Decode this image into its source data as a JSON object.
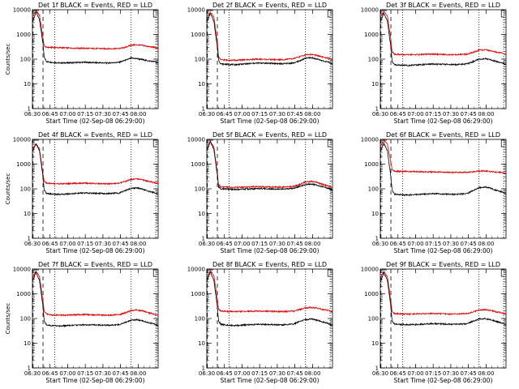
{
  "common": {
    "ylabel": "Counts/sec",
    "xlabel": "Start Time (02-Sep-08 06:29:00)",
    "x_tick_labels": [
      "06:30",
      "06:45",
      "07:00",
      "07:15",
      "07:30",
      "07:45",
      "08:00"
    ],
    "y_tick_labels": [
      "1",
      "10",
      "100",
      "1000",
      "10000"
    ],
    "ylim": [
      1,
      10000
    ],
    "y_scale": "log",
    "xlim_minutes_from_start": [
      1,
      108
    ],
    "series_colors": {
      "events": "#000000",
      "lld": "#dd0000"
    },
    "marker_lines_dashed_minutes": [
      1.5,
      10
    ],
    "marker_lines_dotted_minutes": [
      20,
      85,
      106
    ]
  },
  "chart_data": [
    {
      "type": "line",
      "title": "Det 1f BLACK = Events, RED = LLD",
      "x_minutes": [
        1,
        4,
        7,
        10,
        11,
        13,
        17,
        25,
        35,
        45,
        55,
        65,
        75,
        80,
        85,
        90,
        95,
        100,
        105,
        108
      ],
      "series": [
        {
          "values": [
            3000,
            8000,
            4000,
            400,
            120,
            80,
            75,
            70,
            72,
            75,
            72,
            70,
            75,
            90,
            110,
            105,
            95,
            85,
            80,
            70
          ]
        },
        {
          "values": [
            5000,
            9000,
            6000,
            700,
            350,
            300,
            300,
            290,
            280,
            275,
            270,
            265,
            270,
            300,
            370,
            380,
            360,
            320,
            300,
            260
          ]
        }
      ]
    },
    {
      "type": "line",
      "title": "Det 2f BLACK = Events, RED = LLD",
      "x_minutes": [
        1,
        4,
        7,
        10,
        11,
        13,
        17,
        25,
        35,
        45,
        55,
        65,
        75,
        80,
        85,
        90,
        95,
        100,
        105,
        108
      ],
      "series": [
        {
          "values": [
            3000,
            7000,
            3500,
            300,
            90,
            65,
            62,
            60,
            65,
            70,
            68,
            65,
            70,
            85,
            110,
            115,
            100,
            85,
            75,
            65
          ]
        },
        {
          "values": [
            5000,
            8000,
            5000,
            500,
            120,
            95,
            92,
            90,
            95,
            100,
            97,
            95,
            105,
            125,
            150,
            155,
            140,
            120,
            110,
            95
          ]
        }
      ]
    },
    {
      "type": "line",
      "title": "Det 3f BLACK = Events, RED = LLD",
      "x_minutes": [
        1,
        4,
        7,
        10,
        11,
        13,
        17,
        25,
        35,
        45,
        55,
        65,
        75,
        80,
        85,
        90,
        95,
        100,
        105,
        108
      ],
      "series": [
        {
          "values": [
            3000,
            7500,
            3500,
            300,
            85,
            60,
            58,
            56,
            60,
            63,
            62,
            60,
            65,
            80,
            100,
            105,
            95,
            80,
            70,
            60
          ]
        },
        {
          "values": [
            5000,
            8500,
            5500,
            600,
            200,
            160,
            155,
            150,
            155,
            160,
            155,
            150,
            160,
            190,
            230,
            240,
            220,
            190,
            175,
            150
          ]
        }
      ]
    },
    {
      "type": "line",
      "title": "Det 4f BLACK = Events, RED = LLD",
      "x_minutes": [
        1,
        4,
        7,
        10,
        11,
        13,
        17,
        25,
        35,
        45,
        55,
        65,
        75,
        80,
        85,
        90,
        95,
        100,
        105,
        108
      ],
      "series": [
        {
          "values": [
            3000,
            7000,
            3500,
            300,
            90,
            65,
            62,
            60,
            64,
            68,
            66,
            64,
            68,
            85,
            105,
            110,
            95,
            80,
            70,
            60
          ]
        },
        {
          "values": [
            4000,
            6500,
            4000,
            400,
            200,
            170,
            165,
            160,
            165,
            170,
            165,
            160,
            170,
            200,
            240,
            250,
            230,
            200,
            180,
            160
          ]
        }
      ]
    },
    {
      "type": "line",
      "title": "Det 5f BLACK = Events, RED = LLD",
      "x_minutes": [
        1,
        4,
        7,
        10,
        11,
        13,
        17,
        25,
        35,
        45,
        55,
        65,
        75,
        80,
        85,
        90,
        95,
        100,
        105,
        108
      ],
      "series": [
        {
          "values": [
            3500,
            8000,
            4000,
            350,
            120,
            100,
            98,
            95,
            98,
            102,
            100,
            98,
            105,
            125,
            150,
            155,
            140,
            120,
            105,
            90
          ]
        },
        {
          "values": [
            4500,
            8500,
            5000,
            450,
            150,
            120,
            118,
            115,
            118,
            122,
            120,
            118,
            125,
            150,
            190,
            200,
            180,
            150,
            130,
            110
          ]
        }
      ]
    },
    {
      "type": "line",
      "title": "Det 6f BLACK = Events, RED = LLD",
      "x_minutes": [
        1,
        4,
        7,
        10,
        11,
        13,
        17,
        25,
        35,
        45,
        55,
        65,
        75,
        80,
        85,
        90,
        95,
        100,
        105,
        108
      ],
      "series": [
        {
          "values": [
            3000,
            7000,
            3500,
            300,
            90,
            60,
            58,
            56,
            60,
            64,
            62,
            60,
            65,
            85,
            110,
            120,
            105,
            85,
            75,
            65
          ]
        },
        {
          "values": [
            5000,
            9000,
            6500,
            1200,
            600,
            520,
            510,
            500,
            490,
            480,
            470,
            460,
            470,
            490,
            520,
            530,
            500,
            470,
            450,
            420
          ]
        }
      ]
    },
    {
      "type": "line",
      "title": "Det 7f BLACK = Events, RED = LLD",
      "x_minutes": [
        1,
        4,
        7,
        10,
        11,
        13,
        17,
        25,
        35,
        45,
        55,
        65,
        75,
        80,
        85,
        90,
        95,
        100,
        105,
        108
      ],
      "series": [
        {
          "values": [
            3000,
            7500,
            3500,
            300,
            80,
            55,
            52,
            50,
            53,
            56,
            55,
            53,
            57,
            70,
            85,
            90,
            80,
            68,
            60,
            50
          ]
        },
        {
          "values": [
            4500,
            8000,
            5000,
            500,
            200,
            150,
            140,
            135,
            140,
            145,
            140,
            135,
            145,
            170,
            210,
            220,
            200,
            170,
            150,
            130
          ]
        }
      ]
    },
    {
      "type": "line",
      "title": "Det 8f BLACK = Events, RED = LLD",
      "x_minutes": [
        1,
        4,
        7,
        10,
        11,
        13,
        17,
        25,
        35,
        45,
        55,
        65,
        75,
        80,
        85,
        90,
        95,
        100,
        105,
        108
      ],
      "series": [
        {
          "values": [
            3000,
            7500,
            3500,
            300,
            80,
            58,
            55,
            52,
            55,
            58,
            57,
            55,
            60,
            75,
            90,
            95,
            85,
            72,
            62,
            52
          ]
        },
        {
          "values": [
            4500,
            8500,
            5500,
            600,
            240,
            200,
            195,
            190,
            195,
            200,
            195,
            190,
            200,
            230,
            270,
            280,
            260,
            230,
            210,
            180
          ]
        }
      ]
    },
    {
      "type": "line",
      "title": "Det 9f BLACK = Events, RED = LLD",
      "x_minutes": [
        1,
        4,
        7,
        10,
        11,
        13,
        17,
        25,
        35,
        45,
        55,
        65,
        75,
        80,
        85,
        90,
        95,
        100,
        105,
        108
      ],
      "series": [
        {
          "values": [
            3000,
            7000,
            3500,
            300,
            80,
            60,
            58,
            56,
            58,
            62,
            60,
            58,
            62,
            78,
            95,
            100,
            90,
            75,
            65,
            55
          ]
        },
        {
          "values": [
            4500,
            8000,
            5000,
            500,
            190,
            160,
            155,
            150,
            155,
            160,
            155,
            150,
            160,
            185,
            220,
            230,
            210,
            185,
            165,
            145
          ]
        }
      ]
    }
  ]
}
